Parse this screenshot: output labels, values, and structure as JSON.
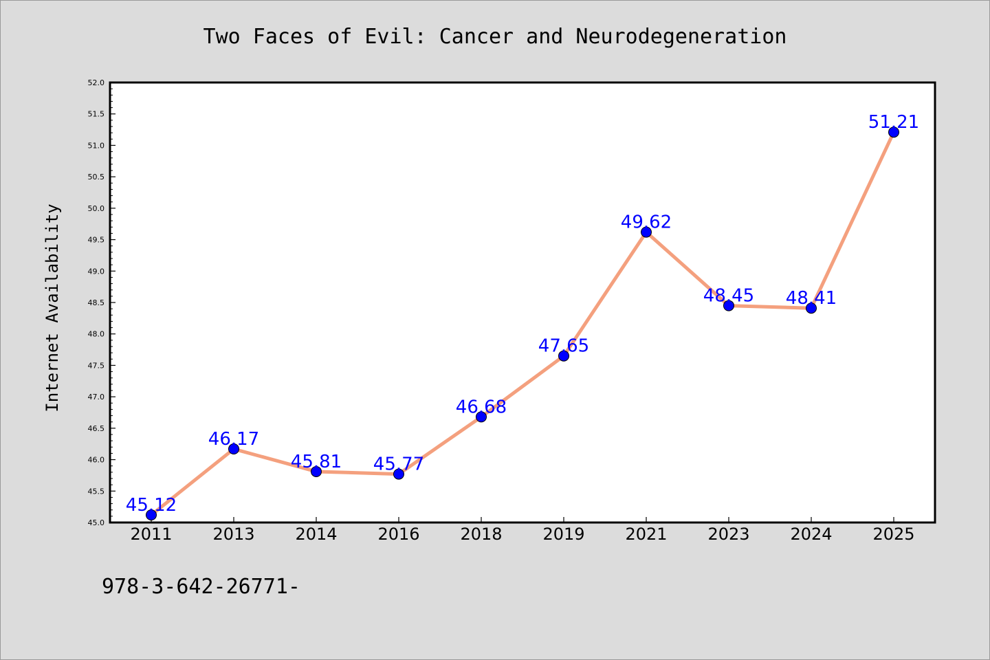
{
  "chart_data": {
    "type": "line",
    "title": "Two Faces of Evil: Cancer and Neurodegeneration",
    "ylabel": "Internet Availability",
    "xlabel": "",
    "categories": [
      "2011",
      "2013",
      "2014",
      "2016",
      "2018",
      "2019",
      "2021",
      "2023",
      "2024",
      "2025"
    ],
    "values": [
      45.12,
      46.17,
      45.81,
      45.77,
      46.68,
      47.65,
      49.62,
      48.45,
      48.41,
      51.21
    ],
    "data_labels": [
      "45.12",
      "46.17",
      "45.81",
      "45.77",
      "46.68",
      "47.65",
      "49.62",
      "48.45",
      "48.41",
      "51.21"
    ],
    "ylim": [
      45.0,
      52.0
    ],
    "yticks": [
      "45.0",
      "45.5",
      "46.0",
      "46.5",
      "47.0",
      "47.5",
      "48.0",
      "48.5",
      "49.0",
      "49.5",
      "50.0",
      "50.5",
      "51.0",
      "51.5",
      "52.0"
    ],
    "grid": false,
    "colors": {
      "line": "#f4a07e",
      "marker": "#0000ff",
      "data_label": "#0000ff",
      "background": "#dcdcdc",
      "plot_area": "#ffffff"
    }
  },
  "footer_text": "978-3-642-26771-"
}
